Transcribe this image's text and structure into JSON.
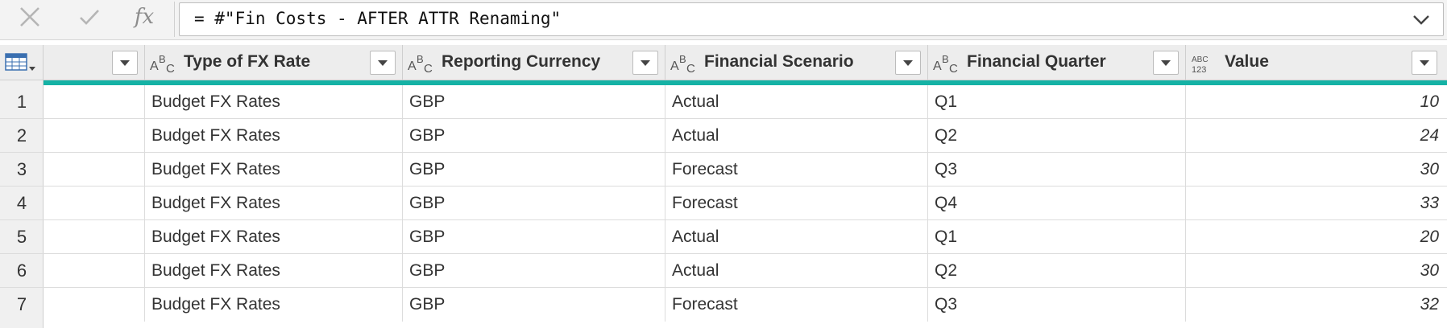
{
  "formula_bar": {
    "cancel_icon": "x-icon",
    "confirm_icon": "check-icon",
    "fx_label": "fx",
    "formula": "= #\"Fin Costs - AFTER ATTR Renaming\"",
    "expand_icon": "chevron-down-icon"
  },
  "colors": {
    "accent_teal": "#15b2a5",
    "header_bg": "#ededed",
    "row_num_bg": "#f0f0f0"
  },
  "table": {
    "columns": [
      {
        "name": "",
        "type_icon": "",
        "filter_icon": "dropdown-icon"
      },
      {
        "name": "Type of FX Rate",
        "type_icon": "text-type-icon",
        "filter_icon": "dropdown-icon"
      },
      {
        "name": "Reporting Currency",
        "type_icon": "text-type-icon",
        "filter_icon": "dropdown-icon"
      },
      {
        "name": "Financial Scenario",
        "type_icon": "text-type-icon",
        "filter_icon": "dropdown-icon"
      },
      {
        "name": "Financial Quarter",
        "type_icon": "text-type-icon",
        "filter_icon": "dropdown-icon"
      },
      {
        "name": "Value",
        "type_icon": "any-type-icon",
        "filter_icon": "dropdown-icon"
      }
    ],
    "rows": [
      {
        "num": "1",
        "c0": "",
        "c1": "Budget FX Rates",
        "c2": "GBP",
        "c3": "Actual",
        "c4": "Q1",
        "c5": "10"
      },
      {
        "num": "2",
        "c0": "",
        "c1": "Budget FX Rates",
        "c2": "GBP",
        "c3": "Actual",
        "c4": "Q2",
        "c5": "24"
      },
      {
        "num": "3",
        "c0": "",
        "c1": "Budget FX Rates",
        "c2": "GBP",
        "c3": "Forecast",
        "c4": "Q3",
        "c5": "30"
      },
      {
        "num": "4",
        "c0": "",
        "c1": "Budget FX Rates",
        "c2": "GBP",
        "c3": "Forecast",
        "c4": "Q4",
        "c5": "33"
      },
      {
        "num": "5",
        "c0": "",
        "c1": "Budget FX Rates",
        "c2": "GBP",
        "c3": "Actual",
        "c4": "Q1",
        "c5": "20"
      },
      {
        "num": "6",
        "c0": "",
        "c1": "Budget FX Rates",
        "c2": "GBP",
        "c3": "Actual",
        "c4": "Q2",
        "c5": "30"
      },
      {
        "num": "7",
        "c0": "",
        "c1": "Budget FX Rates",
        "c2": "GBP",
        "c3": "Forecast",
        "c4": "Q3",
        "c5": "32"
      }
    ]
  }
}
